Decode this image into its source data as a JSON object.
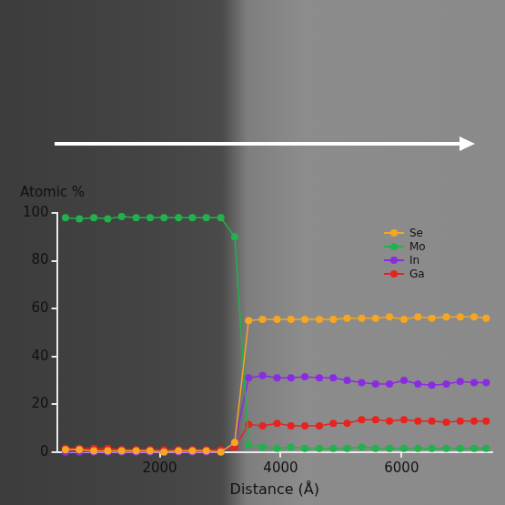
{
  "chart_data": {
    "type": "line",
    "x_label": "Distance (Å)",
    "y_label": "Atomic %",
    "x": [
      440,
      670,
      910,
      1140,
      1370,
      1610,
      1840,
      2070,
      2310,
      2540,
      2770,
      3010,
      3240,
      3470,
      3700,
      3940,
      4170,
      4400,
      4640,
      4870,
      5100,
      5340,
      5570,
      5800,
      6040,
      6270,
      6500,
      6740,
      6970,
      7200,
      7400
    ],
    "series": [
      {
        "name": "Se",
        "color": "#f5a623",
        "marker": "circle",
        "line_style": "solid",
        "values": [
          1,
          1,
          0.5,
          0.5,
          0.5,
          0.5,
          0.5,
          0,
          0.5,
          0.5,
          0.5,
          0,
          4,
          55,
          55.5,
          55.5,
          55.5,
          55.5,
          55.5,
          55.5,
          56,
          56,
          56,
          56.5,
          55.5,
          56.5,
          56,
          56.5,
          56.5,
          56.5,
          56
        ]
      },
      {
        "name": "Mo",
        "color": "#22b14c",
        "marker": "circle",
        "line_style": "solid",
        "values": [
          98,
          97.5,
          98,
          97.5,
          98.5,
          98,
          98,
          98,
          98,
          98,
          98,
          98,
          90,
          3,
          2,
          1.5,
          2,
          1.5,
          1.5,
          1.5,
          1.5,
          2,
          1.5,
          1.5,
          1.5,
          1.5,
          1.5,
          1.5,
          1.5,
          1.5,
          1.5
        ]
      },
      {
        "name": "In",
        "color": "#8a2be2",
        "marker": "circle",
        "line_style": "solid",
        "values": [
          0,
          0,
          0,
          0,
          0,
          0,
          0,
          0,
          0,
          0,
          0,
          0,
          4,
          31,
          32,
          31,
          31,
          31.5,
          31,
          31,
          30,
          29,
          28.5,
          28.5,
          30,
          28.5,
          28,
          28.5,
          29.5,
          29,
          29
        ]
      },
      {
        "name": "Ga",
        "color": "#e8231f",
        "marker": "circle",
        "line_style": "solid",
        "values": [
          1.5,
          1.5,
          1.5,
          1.5,
          1,
          1,
          1,
          1,
          1,
          1,
          1,
          1,
          2,
          11.5,
          11,
          12,
          11,
          11,
          11,
          12,
          12,
          13.5,
          13.5,
          13,
          13.5,
          13,
          13,
          12.5,
          13,
          13,
          13
        ]
      }
    ],
    "xlim": [
      300,
      7500
    ],
    "xticks": [
      2000,
      4000,
      6000
    ],
    "ylim": [
      0,
      100
    ],
    "yticks": [
      0,
      20,
      40,
      60,
      80,
      100
    ],
    "grid": false,
    "legend": "upper right"
  }
}
